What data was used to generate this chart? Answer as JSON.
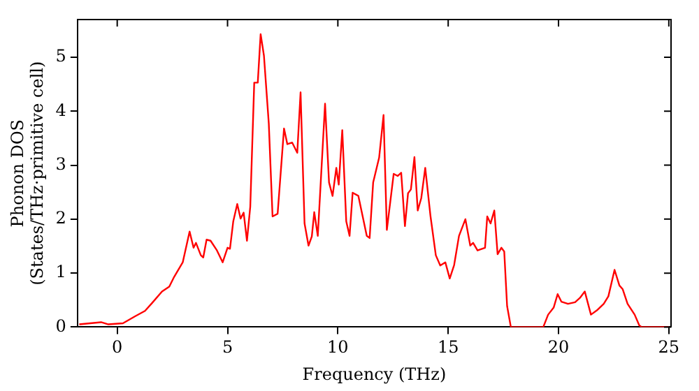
{
  "chart_data": {
    "type": "line",
    "xlabel": "Frequency (THz)",
    "ylabel": "Phonon DOS\n(States/THz·primitive cell)",
    "xlim": [
      -1.8,
      25.1
    ],
    "xticks": [
      0,
      5,
      10,
      15,
      20,
      25
    ],
    "ylim": [
      0,
      5.7
    ],
    "yticks": [
      0,
      1,
      2,
      3,
      4,
      5
    ],
    "grid": false,
    "legend": false,
    "marker": "none",
    "line_style": "solid",
    "x": [
      -1.72,
      -0.73,
      -0.4,
      0.26,
      0.81,
      1.26,
      1.59,
      2.03,
      2.36,
      2.58,
      2.97,
      3.28,
      3.46,
      3.57,
      3.79,
      3.9,
      4.05,
      4.23,
      4.52,
      4.78,
      5.0,
      5.11,
      5.26,
      5.44,
      5.59,
      5.73,
      5.88,
      6.03,
      6.21,
      6.37,
      6.5,
      6.65,
      6.87,
      7.04,
      7.27,
      7.56,
      7.71,
      7.93,
      8.16,
      8.31,
      8.49,
      8.67,
      8.82,
      8.93,
      9.09,
      9.42,
      9.6,
      9.76,
      9.93,
      10.04,
      10.2,
      10.38,
      10.53,
      10.67,
      10.93,
      11.31,
      11.44,
      11.6,
      11.87,
      12.07,
      12.22,
      12.53,
      12.71,
      12.87,
      13.04,
      13.18,
      13.31,
      13.47,
      13.62,
      13.78,
      13.96,
      14.2,
      14.44,
      14.64,
      14.87,
      15.07,
      15.27,
      15.49,
      15.78,
      16.0,
      16.13,
      16.33,
      16.67,
      16.77,
      16.92,
      17.09,
      17.24,
      17.41,
      17.54,
      17.67,
      17.84,
      19.31,
      19.53,
      19.78,
      19.96,
      20.13,
      20.43,
      20.75,
      20.97,
      21.19,
      21.47,
      21.77,
      22.05,
      22.26,
      22.54,
      22.76,
      22.91,
      23.13,
      23.45,
      23.66,
      23.77,
      25.0
    ],
    "series": [
      {
        "color": "#ff0000",
        "values": [
          0.05,
          0.09,
          0.05,
          0.07,
          0.2,
          0.3,
          0.45,
          0.66,
          0.75,
          0.93,
          1.2,
          1.77,
          1.47,
          1.56,
          1.33,
          1.29,
          1.62,
          1.6,
          1.42,
          1.2,
          1.47,
          1.45,
          1.96,
          2.28,
          2.01,
          2.12,
          1.6,
          2.23,
          4.53,
          4.53,
          5.43,
          5.03,
          3.77,
          2.05,
          2.1,
          3.68,
          3.39,
          3.42,
          3.23,
          4.35,
          1.92,
          1.51,
          1.68,
          2.13,
          1.69,
          4.14,
          2.68,
          2.43,
          2.95,
          2.64,
          3.65,
          1.96,
          1.69,
          2.49,
          2.43,
          1.69,
          1.65,
          2.68,
          3.14,
          3.93,
          1.8,
          2.84,
          2.8,
          2.86,
          1.87,
          2.48,
          2.55,
          3.15,
          2.16,
          2.39,
          2.95,
          2.05,
          1.33,
          1.14,
          1.2,
          0.9,
          1.15,
          1.69,
          2.0,
          1.51,
          1.56,
          1.42,
          1.47,
          2.05,
          1.92,
          2.16,
          1.35,
          1.47,
          1.4,
          0.39,
          0,
          0,
          0.23,
          0.36,
          0.61,
          0.47,
          0.43,
          0.46,
          0.54,
          0.66,
          0.23,
          0.32,
          0.43,
          0.57,
          1.06,
          0.77,
          0.7,
          0.43,
          0.23,
          0.03,
          0,
          0
        ]
      }
    ]
  }
}
